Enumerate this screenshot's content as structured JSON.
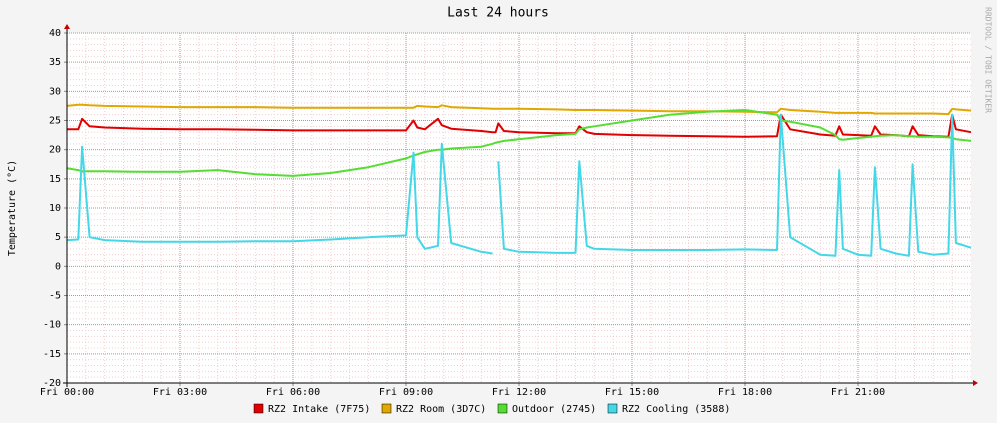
{
  "chart_data": {
    "type": "line",
    "title": "Last 24 hours",
    "y_label": "Temperature (°C)",
    "watermark": "RRDTOOL / TOBI OETIKER",
    "xlim": [
      0,
      24
    ],
    "xticks": [
      {
        "value": 0,
        "label": "Fri 00:00"
      },
      {
        "value": 3,
        "label": "Fri 03:00"
      },
      {
        "value": 6,
        "label": "Fri 06:00"
      },
      {
        "value": 9,
        "label": "Fri 09:00"
      },
      {
        "value": 12,
        "label": "Fri 12:00"
      },
      {
        "value": 15,
        "label": "Fri 15:00"
      },
      {
        "value": 18,
        "label": "Fri 18:00"
      },
      {
        "value": 21,
        "label": "Fri 21:00"
      }
    ],
    "ylim": [
      -20,
      40
    ],
    "yticks": [
      -20,
      -15,
      -10,
      -5,
      0,
      5,
      10,
      15,
      20,
      25,
      30,
      35,
      40
    ],
    "grid": true,
    "minor_grid": true,
    "legend": "bottom",
    "x": [
      0,
      0.3,
      0.4,
      0.6,
      1,
      2,
      3,
      4,
      5,
      6,
      7,
      8,
      9,
      9.2,
      9.3,
      9.5,
      9.85,
      9.95,
      10.2,
      11,
      11.3,
      11.38,
      11.45,
      11.6,
      12,
      13,
      13.5,
      13.6,
      13.8,
      14,
      15,
      16,
      17,
      18,
      18.85,
      18.95,
      19.2,
      20,
      20.4,
      20.5,
      20.6,
      21,
      21.35,
      21.45,
      21.6,
      22,
      22.35,
      22.45,
      22.6,
      23,
      23.4,
      23.5,
      23.6,
      24
    ],
    "series": [
      {
        "name": "RZ2 Intake (7F75)",
        "color": "#e00000",
        "values": [
          23.5,
          23.5,
          25.3,
          24,
          23.8,
          23.6,
          23.5,
          23.5,
          23.4,
          23.3,
          23.3,
          23.3,
          23.3,
          25,
          23.8,
          23.5,
          25.3,
          24.2,
          23.6,
          23.2,
          23,
          23,
          24.5,
          23.2,
          23,
          22.8,
          22.8,
          24,
          23,
          22.7,
          22.5,
          22.4,
          22.3,
          22.2,
          22.3,
          26,
          23.5,
          22.6,
          22.4,
          24,
          22.6,
          22.5,
          22.4,
          24,
          22.6,
          22.5,
          22.3,
          24,
          22.5,
          22.3,
          22.2,
          26,
          23.5,
          23
        ]
      },
      {
        "name": "RZ2 Room (3D7C)",
        "color": "#e0a800",
        "values": [
          27.5,
          27.7,
          27.7,
          27.6,
          27.5,
          27.4,
          27.3,
          27.3,
          27.3,
          27.2,
          27.2,
          27.2,
          27.2,
          27.2,
          27.5,
          27.4,
          27.3,
          27.6,
          27.3,
          27.1,
          27,
          27,
          27,
          27,
          27,
          26.9,
          26.8,
          26.8,
          26.8,
          26.8,
          26.7,
          26.6,
          26.6,
          26.5,
          26.4,
          27,
          26.8,
          26.5,
          26.3,
          26.3,
          26.3,
          26.3,
          26.3,
          26.2,
          26.2,
          26.2,
          26.2,
          26.2,
          26.2,
          26.2,
          26.1,
          27,
          26.9,
          26.7
        ]
      },
      {
        "name": "Outdoor (2745)",
        "color": "#55dd33",
        "values": [
          16.8,
          16.5,
          16.3,
          16.3,
          16.3,
          16.2,
          16.2,
          16.5,
          15.8,
          15.5,
          16,
          17,
          18.5,
          19,
          19.2,
          19.6,
          20,
          20,
          20.2,
          20.5,
          21,
          21.2,
          21.3,
          21.5,
          21.8,
          22.5,
          22.7,
          23.5,
          23.8,
          24,
          25,
          26,
          26.5,
          26.8,
          26,
          25,
          24.8,
          23.8,
          22.5,
          21.8,
          21.7,
          22,
          22.2,
          22.3,
          22.4,
          22.5,
          22.3,
          22.3,
          22.2,
          22.2,
          22.1,
          22,
          21.8,
          21.5
        ]
      },
      {
        "name": "RZ2 Cooling (3588)",
        "color": "#44d7e8",
        "values": [
          4.5,
          4.6,
          20.5,
          5,
          4.5,
          4.2,
          4.2,
          4.2,
          4.3,
          4.3,
          4.6,
          5,
          5.3,
          19.5,
          5,
          3,
          3.5,
          21,
          4,
          2.5,
          2.2,
          null,
          18,
          3,
          2.5,
          2.3,
          2.3,
          18,
          3.5,
          3,
          2.8,
          2.8,
          2.8,
          2.9,
          2.8,
          26,
          5,
          2,
          1.8,
          16.5,
          3,
          2,
          1.8,
          17,
          3,
          2.2,
          1.8,
          17.5,
          2.5,
          2,
          2.2,
          26,
          4,
          3.2
        ]
      }
    ]
  }
}
